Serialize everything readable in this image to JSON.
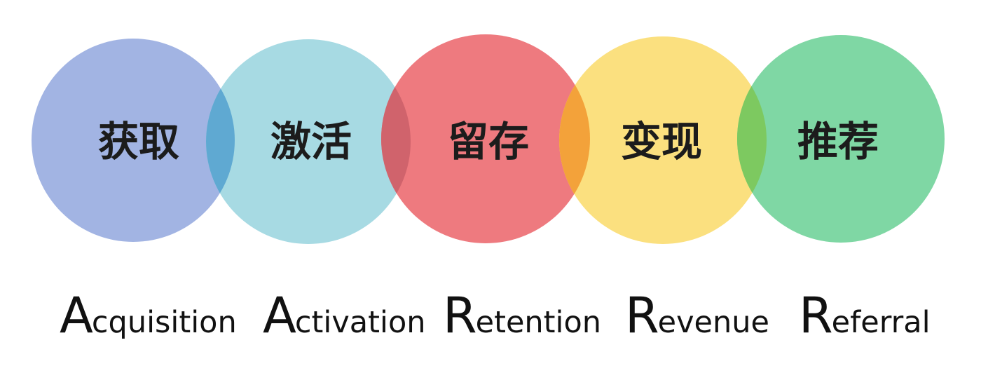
{
  "stages": [
    {
      "zh": "获取",
      "en_initial": "A",
      "en_rest": "cquisition",
      "color": "#a2b4e3"
    },
    {
      "zh": "激活",
      "en_initial": "A",
      "en_rest": "ctivation",
      "color": "#a7dae3"
    },
    {
      "zh": "留存",
      "en_initial": "R",
      "en_rest": "etention",
      "color": "#ee7a7f"
    },
    {
      "zh": "变现",
      "en_initial": "R",
      "en_rest": "evenue",
      "color": "#fbe07f"
    },
    {
      "zh": "推荐",
      "en_initial": "R",
      "en_rest": "eferral",
      "color": "#7fd7a4"
    }
  ],
  "overlap_colors": [
    "#5fa9d2",
    "#d0636c",
    "#f3a23a",
    "#7dc960"
  ]
}
